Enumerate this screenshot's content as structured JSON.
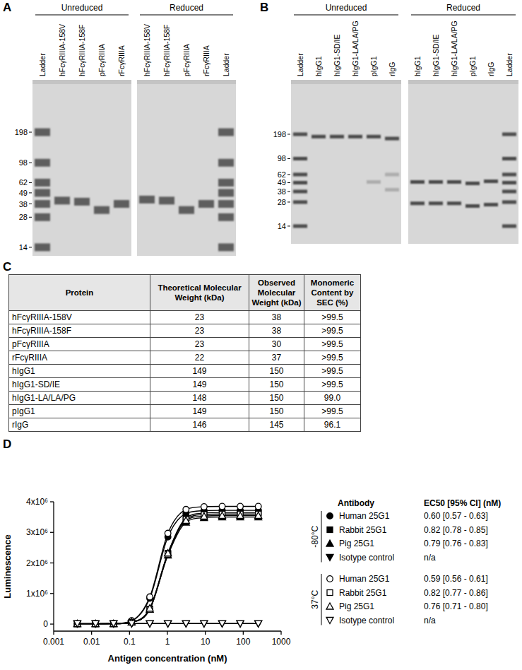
{
  "gels": [
    {
      "label": "A",
      "ylim": [
        660,
        11.5
      ],
      "yticks": [
        198,
        98,
        62,
        49,
        38,
        28,
        14
      ],
      "slabs": [
        {
          "title": "Unreduced",
          "lanes": [
            {
              "name": "Ladder",
              "bands": [
                198,
                98,
                62,
                49,
                38,
                28,
                14
              ]
            },
            {
              "name": "hFcγRIIIA-158V",
              "bands": [
                41
              ]
            },
            {
              "name": "hFcγRIIIA-158F",
              "bands": [
                40
              ]
            },
            {
              "name": "pFcγRIIIA",
              "bands": [
                33
              ]
            },
            {
              "name": "rFcγRIIIA",
              "bands": [
                38
              ]
            }
          ]
        },
        {
          "title": "Reduced",
          "lanes": [
            {
              "name": "hFcγRIIIA-158V",
              "bands": [
                42
              ]
            },
            {
              "name": "hFcγRIIIA-158F",
              "bands": [
                41
              ]
            },
            {
              "name": "pFcγRIIIA",
              "bands": [
                33
              ]
            },
            {
              "name": "rFcγRIIIA",
              "bands": [
                38
              ]
            },
            {
              "name": "Ladder",
              "bands": [
                198,
                98,
                62,
                49,
                38,
                28,
                14
              ]
            }
          ]
        }
      ]
    },
    {
      "label": "B",
      "ylim": [
        950,
        8.4
      ],
      "yticks": [
        198,
        98,
        62,
        49,
        38,
        28,
        14
      ],
      "slabs": [
        {
          "title": "Unreduced",
          "lanes": [
            {
              "name": "Ladder",
              "bands": [
                198,
                98,
                62,
                49,
                38,
                28,
                14
              ]
            },
            {
              "name": "hIgG1",
              "bands": [
                185
              ]
            },
            {
              "name": "hIgG1-SD/IE",
              "bands": [
                185
              ]
            },
            {
              "name": "hIgG1-LA/LA/PG",
              "bands": [
                185
              ]
            },
            {
              "name": "pIgG1",
              "bands": [
                185
              ],
              "faint_bands": [
                50
              ]
            },
            {
              "name": "rIgG",
              "bands": [
                175
              ],
              "faint_bands": [
                62,
                40
              ]
            }
          ]
        },
        {
          "title": "Reduced",
          "lanes": [
            {
              "name": "hIgG1",
              "bands": [
                50,
                27
              ]
            },
            {
              "name": "hIgG1-SD/IE",
              "bands": [
                50,
                27
              ]
            },
            {
              "name": "hIgG1-LA/LA/PG",
              "bands": [
                50,
                27
              ]
            },
            {
              "name": "pIgG1",
              "bands": [
                48,
                25
              ]
            },
            {
              "name": "rIgG",
              "bands": [
                51,
                26
              ]
            },
            {
              "name": "Ladder",
              "bands": [
                198,
                98,
                62,
                49,
                38,
                28,
                14
              ]
            }
          ]
        }
      ]
    }
  ],
  "table": {
    "label": "C",
    "columns": [
      "Protein",
      "Theoretical Molecular Weight (kDa)",
      "Observed Molecular Weight (kDa)",
      "Monomeric Content by SEC (%)"
    ],
    "rows": [
      [
        "hFcγRIIIA-158V",
        23,
        38,
        ">99.5"
      ],
      [
        "hFcγRIIIA-158F",
        23,
        38,
        ">99.5"
      ],
      [
        "pFcγRIIIA",
        23,
        30,
        ">99.5"
      ],
      [
        "rFcγRIIIA",
        22,
        37,
        ">99.5"
      ],
      [
        "hIgG1",
        149,
        150,
        ">99.5"
      ],
      [
        "hIgG1-SD/IE",
        149,
        150,
        ">99.5"
      ],
      [
        "hIgG1-LA/LA/PG",
        148,
        150,
        "99.0"
      ],
      [
        "pIgG1",
        149,
        150,
        ">99.5"
      ],
      [
        "rIgG",
        146,
        145,
        "96.1"
      ]
    ]
  },
  "chart_data": {
    "label": "D",
    "type": "line",
    "x_label": "Antigen concentration (nM)",
    "y_label": "Luminescence",
    "log": "x",
    "legend": "right",
    "legend_header": [
      "Antibody",
      "EC50 [95% CI] (nM)"
    ],
    "x": [
      0.0042,
      0.0127,
      0.038,
      0.114,
      0.343,
      1.03,
      3.09,
      9.26,
      27.8,
      83.3,
      250
    ],
    "xlim": [
      0.001,
      1000
    ],
    "xticks": [
      0.001,
      0.01,
      0.1,
      1,
      10,
      100,
      1000
    ],
    "ylim": [
      -230000,
      4000000
    ],
    "yticks": [
      0,
      {
        "value": 1000000,
        "label": "1x10⁶"
      },
      {
        "value": 2000000,
        "label": "2x10⁶"
      },
      {
        "value": 3000000,
        "label": "3x10⁶"
      },
      {
        "value": 4000000,
        "label": "4x10⁶"
      }
    ],
    "series": [
      {
        "name": "Human 25G1",
        "group": "-80°C",
        "color": "#000000",
        "marker": "circle",
        "ec50": "0.60 [0.57 - 0.63]",
        "values": [
          10000,
          10000,
          15000,
          103000,
          845000,
          2850000,
          3620000,
          3710000,
          3720000,
          3720000,
          3720000
        ]
      },
      {
        "name": "Rabbit 25G1",
        "group": "-80°C",
        "color": "#000000",
        "marker": "square",
        "ec50": "0.82 [0.78 - 0.85]",
        "values": [
          10000,
          10000,
          12000,
          60000,
          489000,
          2320000,
          3470000,
          3630000,
          3650000,
          3650000,
          3650000
        ]
      },
      {
        "name": "Pig 25G1",
        "group": "-80°C",
        "color": "#000000",
        "marker": "triangle",
        "ec50": "0.79 [0.76 - 0.83]",
        "values": [
          10000,
          10000,
          12000,
          60000,
          480000,
          2250000,
          3330000,
          3480000,
          3500000,
          3500000,
          3500000
        ]
      },
      {
        "name": "Isotype control",
        "group": "-80°C",
        "color": "#000000",
        "marker": "triangle-down",
        "ec50": "n/a",
        "values": [
          15000,
          14000,
          15000,
          16000,
          15000,
          15000,
          16000,
          15000,
          15000,
          16000,
          15000
        ]
      },
      {
        "name": "Human 25G1",
        "group": "37°C",
        "color": "#000000",
        "marker": "open-circle",
        "ec50": "0.59 [0.56 - 0.61]",
        "values": [
          10000,
          10000,
          19000,
          110000,
          890000,
          2970000,
          3750000,
          3840000,
          3850000,
          3850000,
          3850000
        ]
      },
      {
        "name": "Rabbit 25G1",
        "group": "37°C",
        "color": "#000000",
        "marker": "open-square",
        "ec50": "0.82 [0.77 - 0.86]",
        "values": [
          10000,
          10000,
          12000,
          59000,
          482000,
          2286000,
          3424000,
          3582000,
          3600000,
          3600000,
          3600000
        ]
      },
      {
        "name": "Pig 25G1",
        "group": "37°C",
        "color": "#000000",
        "marker": "open-triangle",
        "ec50": "0.76 [0.71 - 0.80]",
        "values": [
          10000,
          10000,
          13000,
          65000,
          520000,
          2320000,
          3390000,
          3530000,
          3550000,
          3550000,
          3550000
        ]
      },
      {
        "name": "Isotype control",
        "group": "37°C",
        "color": "#000000",
        "marker": "open-triangle-down",
        "ec50": "n/a",
        "values": [
          20000,
          19000,
          20000,
          21000,
          20000,
          20000,
          21000,
          20000,
          20000,
          21000,
          20000
        ]
      }
    ]
  }
}
